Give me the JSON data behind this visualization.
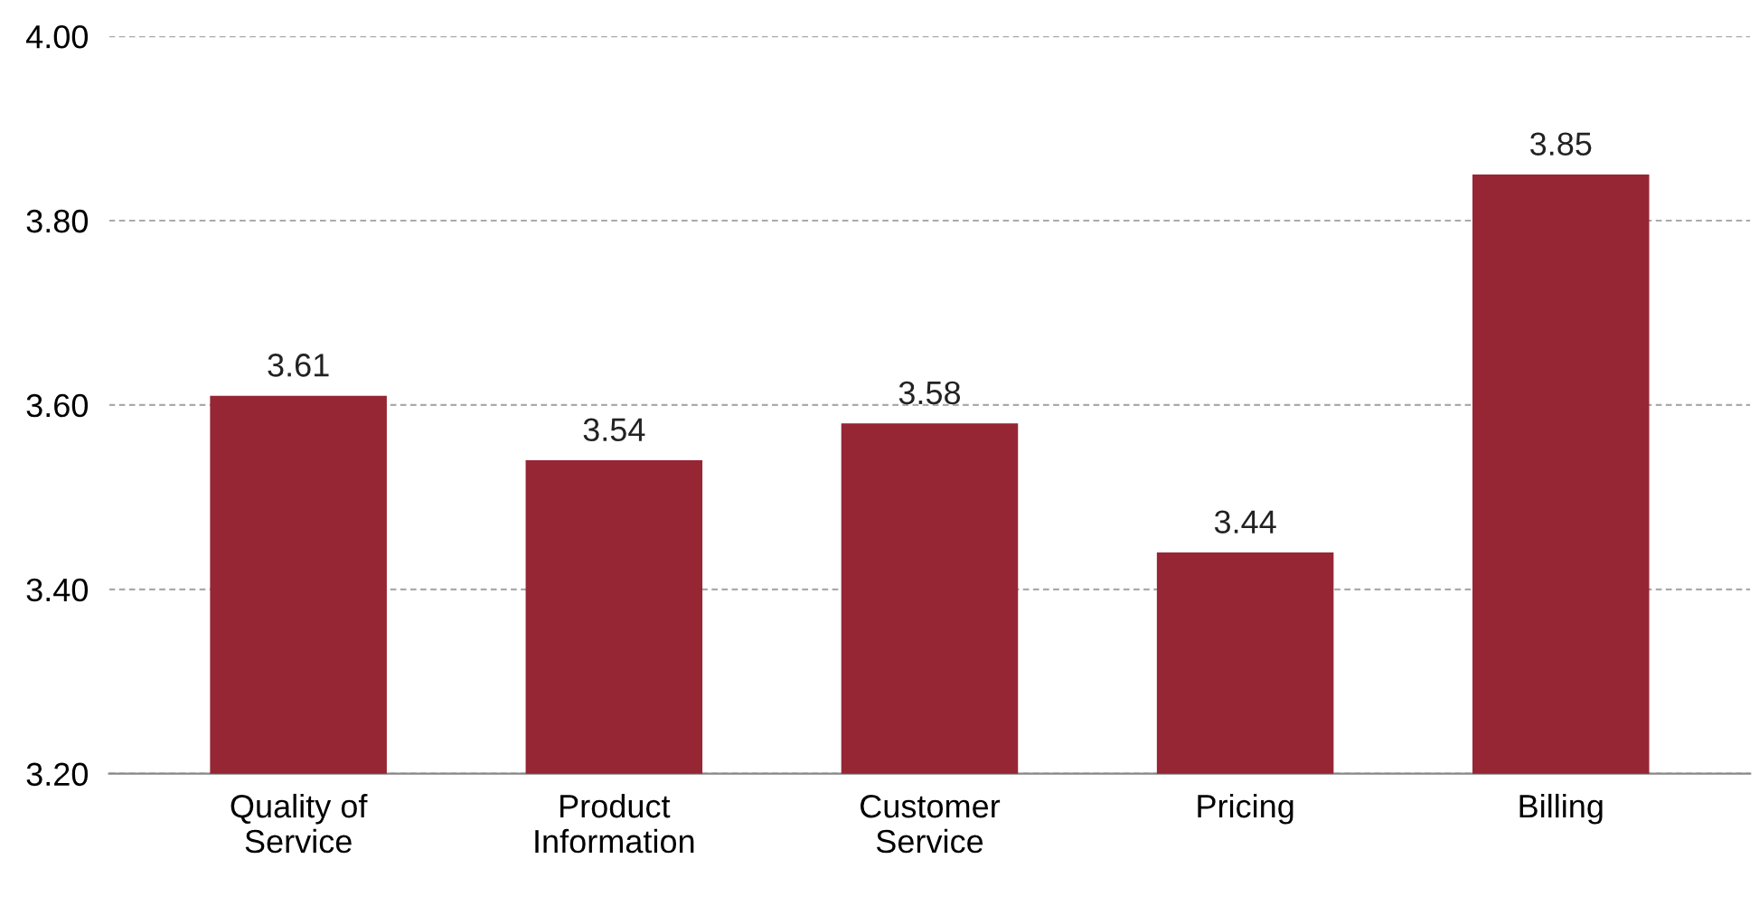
{
  "chart_data": {
    "type": "bar",
    "categories": [
      "Quality of\nService",
      "Product\nInformation",
      "Customer\nService",
      "Pricing",
      "Billing"
    ],
    "values": [
      3.61,
      3.54,
      3.58,
      3.44,
      3.85
    ],
    "color": "#962634",
    "ylim": [
      3.2,
      4.0
    ],
    "yticks": [
      {
        "value": 3.2,
        "label": "3.20"
      },
      {
        "value": 3.4,
        "label": "3.40"
      },
      {
        "value": 3.6,
        "label": "3.60"
      },
      {
        "value": 3.8,
        "label": "3.80"
      },
      {
        "value": 4.0,
        "label": "4.00"
      }
    ],
    "grid": "y",
    "data_labels": true
  }
}
